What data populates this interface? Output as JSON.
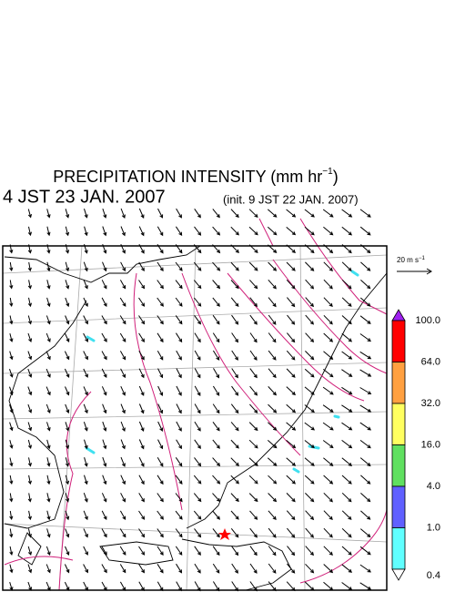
{
  "title": {
    "text": "PRECIPITATION INTENSITY (mm hr",
    "sup": "−1",
    "end": ")"
  },
  "valid_time": "4 JST 23 JAN. 2007",
  "init_time": "(init. 9 JST 22 JAN. 2007)",
  "wind_scale": {
    "text": "20 m s",
    "sup": "−1"
  },
  "colorbar": {
    "labels": [
      "100.0",
      "64.0",
      "32.0",
      "16.0",
      "4.0",
      "1.0",
      "0.4"
    ],
    "colors": [
      "#a020f0",
      "#ff0000",
      "#ffa040",
      "#ffff60",
      "#60e060",
      "#6060ff",
      "#60ffff",
      "#ffffff"
    ]
  }
}
